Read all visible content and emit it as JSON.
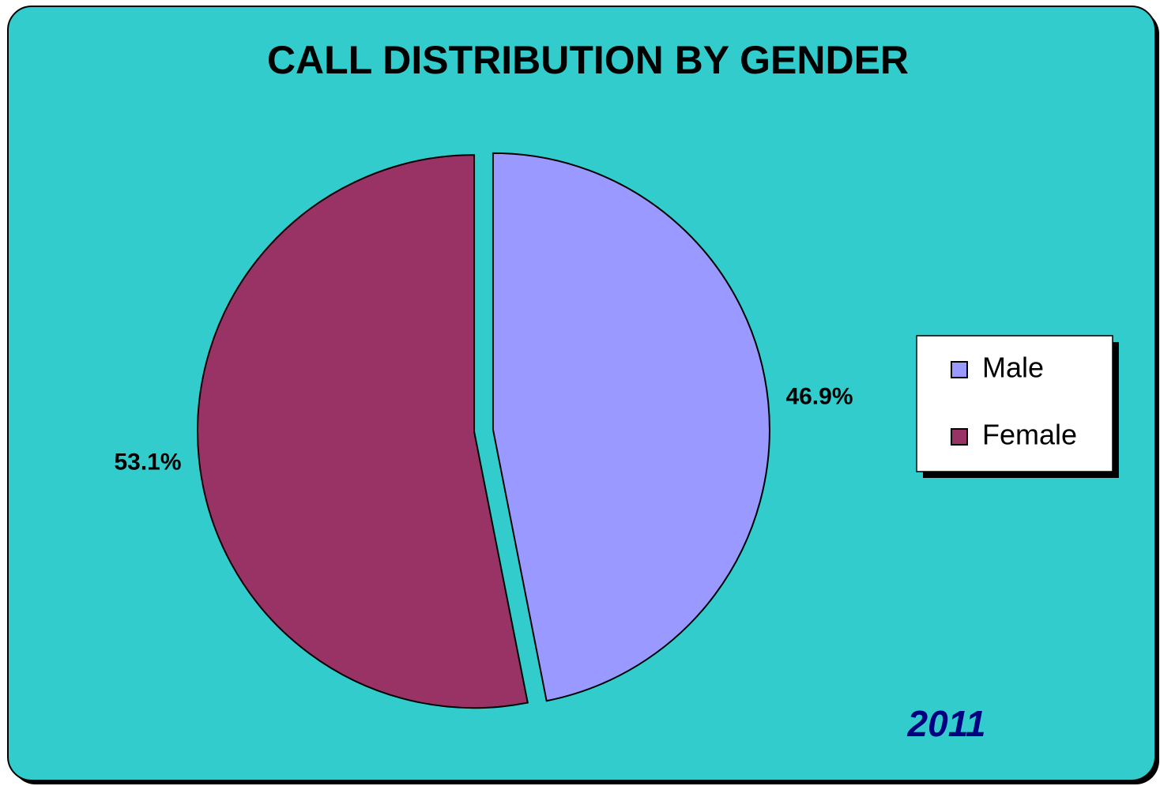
{
  "chart_data": {
    "type": "pie",
    "title": "CALL DISTRIBUTION BY GENDER",
    "categories": [
      "Male",
      "Female"
    ],
    "values": [
      46.9,
      53.1
    ],
    "value_labels": [
      "46.9%",
      "53.1%"
    ],
    "colors": [
      "#9999ff",
      "#993366"
    ],
    "annotation": "2011",
    "legend": "right"
  }
}
